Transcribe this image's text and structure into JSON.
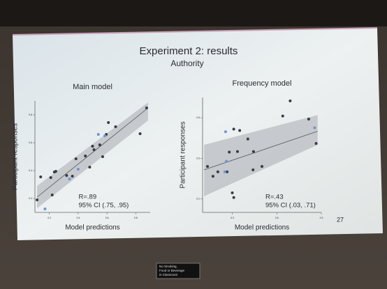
{
  "slide": {
    "title": "Experiment 2: results",
    "subtitle": "Authority",
    "page_number": "27"
  },
  "sign": [
    "No Smoking,",
    "Food or Beverage",
    "in Classroom"
  ],
  "chart_data": [
    {
      "type": "scatter",
      "title": "Main model",
      "x_label": "Model predictions",
      "y_label": "Participant responses",
      "xlim": [
        0.1,
        0.9
      ],
      "ylim": [
        0.1,
        0.9
      ],
      "xticks": [
        0.2,
        0.4,
        0.6,
        0.8
      ],
      "yticks": [
        0.2,
        0.4,
        0.6,
        0.8
      ],
      "series": [
        {
          "color": "#3a3a40",
          "x": [
            0.115,
            0.14,
            0.21,
            0.22,
            0.235,
            0.245,
            0.32,
            0.36,
            0.385,
            0.45,
            0.48,
            0.5,
            0.51,
            0.55,
            0.57,
            0.595,
            0.61,
            0.66,
            0.83,
            0.875
          ],
          "values": [
            0.19,
            0.355,
            0.35,
            0.225,
            0.39,
            0.395,
            0.365,
            0.36,
            0.485,
            0.505,
            0.425,
            0.575,
            0.55,
            0.585,
            0.5,
            0.66,
            0.745,
            0.715,
            0.665,
            0.85
          ]
        },
        {
          "color": "#6f93d6",
          "x": [
            0.17,
            0.34,
            0.4,
            0.54,
            0.585
          ],
          "values": [
            0.125,
            0.34,
            0.41,
            0.66,
            0.65
          ]
        }
      ],
      "fit": {
        "color": "#555555",
        "band_color": "#b9bcc2",
        "x": [
          0.115,
          0.885
        ],
        "y": [
          0.21,
          0.85
        ],
        "lower": [
          0.13,
          0.76
        ],
        "upper": [
          0.29,
          0.89
        ]
      },
      "annotations": [
        "R=.89",
        "95% CI (.75, .95)"
      ]
    },
    {
      "type": "scatter",
      "title": "Frequency model",
      "x_label": "Model predictions",
      "y_label": "Participant responses",
      "xlim": [
        0.1,
        0.9
      ],
      "ylim": [
        0.1,
        0.95
      ],
      "xticks": [
        0.3,
        0.6,
        0.9
      ],
      "yticks": [
        0.2,
        0.5,
        0.8
      ],
      "series": [
        {
          "color": "#3a3a40",
          "x": [
            0.133,
            0.17,
            0.203,
            0.265,
            0.28,
            0.31,
            0.335,
            0.35,
            0.3,
            0.31,
            0.405,
            0.44,
            0.443,
            0.5,
            0.64,
            0.69,
            0.815,
            0.865
          ],
          "values": [
            0.44,
            0.367,
            0.4,
            0.4,
            0.546,
            0.716,
            0.55,
            0.706,
            0.245,
            0.21,
            0.643,
            0.415,
            0.55,
            0.44,
            0.813,
            0.925,
            0.79,
            0.61
          ]
        },
        {
          "color": "#6f93d6",
          "x": [
            0.25,
            0.26,
            0.255,
            0.855
          ],
          "values": [
            0.4,
            0.478,
            0.697,
            0.726
          ]
        }
      ],
      "fit": {
        "color": "#555555",
        "band_color": "#b9bcc2",
        "x": [
          0.11,
          0.875
        ],
        "y": [
          0.415,
          0.7
        ],
        "lower": [
          0.22,
          0.6
        ],
        "upper": [
          0.6,
          0.82
        ]
      },
      "annotations": [
        "R=.43",
        "95% CI (.03, .71)"
      ]
    }
  ]
}
